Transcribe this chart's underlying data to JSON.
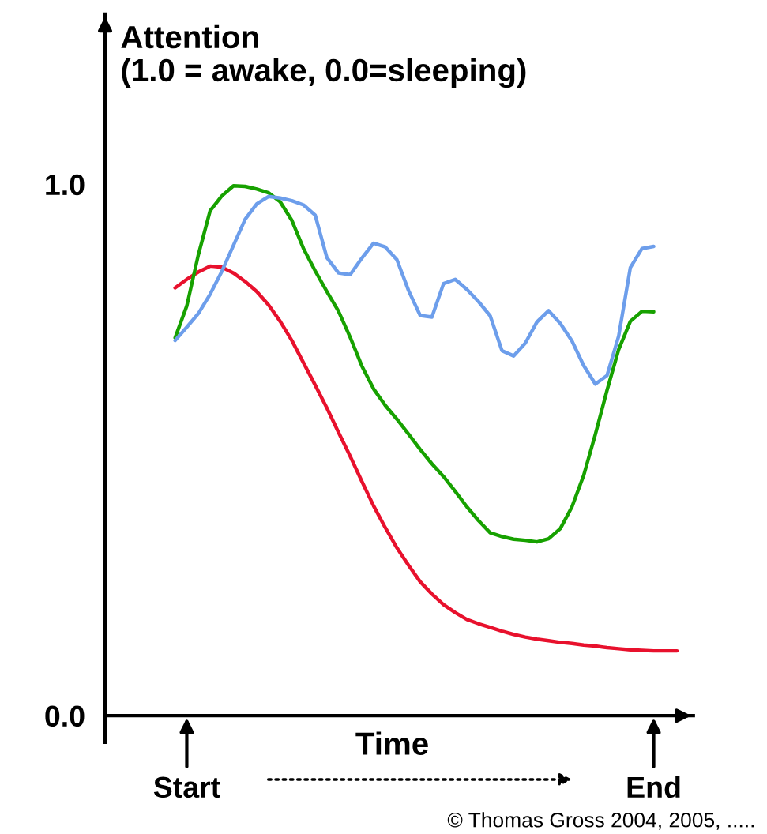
{
  "chart_data": {
    "type": "line",
    "ylabel": "Attention\n(1.0 = awake, 0.0=sleeping)",
    "xlabel": "Time",
    "categories": [
      null,
      null,
      "Start",
      null,
      null,
      null,
      null,
      null,
      null,
      null,
      null,
      null,
      null,
      null,
      null,
      null,
      null,
      null,
      null,
      null,
      null,
      null,
      null,
      null,
      null,
      null,
      null,
      null,
      null,
      null,
      null,
      null,
      null,
      null,
      null,
      null,
      null,
      null,
      null,
      null,
      null,
      null,
      "End",
      null,
      null
    ],
    "ylim": [
      -0.05,
      1.32
    ],
    "yticks": [
      {
        "value": 0,
        "label": "0.0"
      },
      {
        "value": 1,
        "label": "1.0"
      }
    ],
    "grid": false,
    "legend": false,
    "marker": "none",
    "line_style": "solid",
    "annotations": [
      "© Thomas Gross 2004, 2005, ....."
    ],
    "series": [
      {
        "color": "#e8112d",
        "values": [
          null,
          0.805,
          0.821,
          0.835,
          0.846,
          0.844,
          0.833,
          0.817,
          0.798,
          0.773,
          0.742,
          0.706,
          0.664,
          0.622,
          0.579,
          0.533,
          0.488,
          0.441,
          0.395,
          0.354,
          0.316,
          0.283,
          0.252,
          0.229,
          0.209,
          0.194,
          0.181,
          0.173,
          0.166,
          0.159,
          0.153,
          0.148,
          0.144,
          0.141,
          0.138,
          0.136,
          0.133,
          0.131,
          0.128,
          0.126,
          0.124,
          0.123,
          0.122,
          0.122,
          0.122
        ]
      },
      {
        "color": "#17a100",
        "values": [
          null,
          0.711,
          0.771,
          0.868,
          0.95,
          0.978,
          0.997,
          0.996,
          0.991,
          0.984,
          0.967,
          0.932,
          0.879,
          0.837,
          0.798,
          0.761,
          0.712,
          0.658,
          0.615,
          0.584,
          0.558,
          0.53,
          0.501,
          0.474,
          0.45,
          0.422,
          0.393,
          0.367,
          0.344,
          0.337,
          0.332,
          0.33,
          0.327,
          0.333,
          0.352,
          0.393,
          0.452,
          0.529,
          0.612,
          0.689,
          0.742,
          0.761,
          0.76,
          null,
          null
        ]
      },
      {
        "color": "#6d9eeb",
        "values": [
          null,
          0.706,
          0.731,
          0.757,
          0.793,
          0.836,
          0.885,
          0.934,
          0.963,
          0.977,
          0.974,
          0.969,
          0.961,
          0.942,
          0.862,
          0.833,
          0.83,
          0.861,
          0.889,
          0.882,
          0.858,
          0.8,
          0.753,
          0.75,
          0.813,
          0.821,
          0.802,
          0.779,
          0.752,
          0.687,
          0.677,
          0.701,
          0.741,
          0.762,
          0.738,
          0.705,
          0.659,
          0.624,
          0.64,
          0.714,
          0.843,
          0.879,
          0.883,
          null,
          null
        ]
      }
    ]
  }
}
